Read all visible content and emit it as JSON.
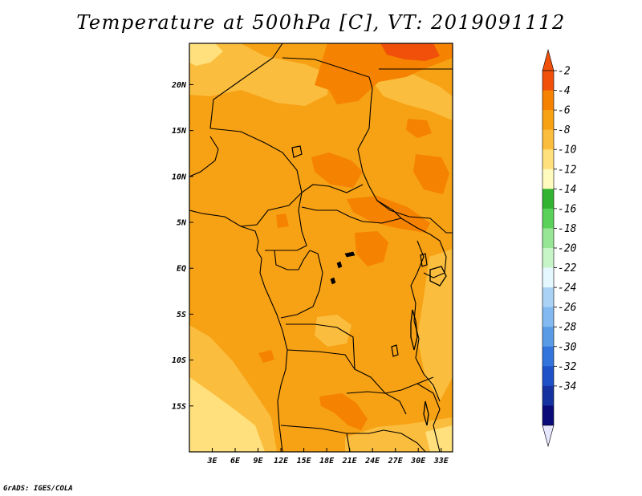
{
  "title": "Temperature at 500hPa [C], VT: 2019091112",
  "credit": "GrADS: IGES/COLA",
  "map": {
    "variable": "Temperature at 500hPa",
    "units": "C",
    "valid_time": "2019091112",
    "lon_range": [
      0,
      34.5
    ],
    "lat_range": [
      -20,
      24.5
    ],
    "lon_ticks": [
      {
        "value": 3,
        "label": "3E"
      },
      {
        "value": 6,
        "label": "6E"
      },
      {
        "value": 9,
        "label": "9E"
      },
      {
        "value": 12,
        "label": "12E"
      },
      {
        "value": 15,
        "label": "15E"
      },
      {
        "value": 18,
        "label": "18E"
      },
      {
        "value": 21,
        "label": "21E"
      },
      {
        "value": 24,
        "label": "24E"
      },
      {
        "value": 27,
        "label": "27E"
      },
      {
        "value": 30,
        "label": "30E"
      },
      {
        "value": 33,
        "label": "33E"
      }
    ],
    "lat_ticks": [
      {
        "value": 20,
        "label": "20N"
      },
      {
        "value": 15,
        "label": "15N"
      },
      {
        "value": 10,
        "label": "10N"
      },
      {
        "value": 5,
        "label": "5N"
      },
      {
        "value": 0,
        "label": "EQ"
      },
      {
        "value": -5,
        "label": "5S"
      },
      {
        "value": -10,
        "label": "10S"
      },
      {
        "value": -15,
        "label": "15S"
      }
    ],
    "dominant_range": "-6 to -4"
  },
  "colorbar": {
    "labels": [
      "-2",
      "-4",
      "-6",
      "-8",
      "-10",
      "-12",
      "-14",
      "-16",
      "-18",
      "-20",
      "-22",
      "-24",
      "-26",
      "-28",
      "-30",
      "-32",
      "-34"
    ],
    "colors": [
      "#f0500a",
      "#f58200",
      "#f7a114",
      "#fbbd3d",
      "#ffe07d",
      "#fffabe",
      "#32b432",
      "#5ad25a",
      "#96e696",
      "#c8f5c8",
      "#e6f8ff",
      "#aad2f5",
      "#82b9f0",
      "#5a9be6",
      "#3273dc",
      "#1e50c8",
      "#1432a0",
      "#0a0a78"
    ],
    "top_color": "#f0500a",
    "bottom_color": "#e6e6ff"
  }
}
